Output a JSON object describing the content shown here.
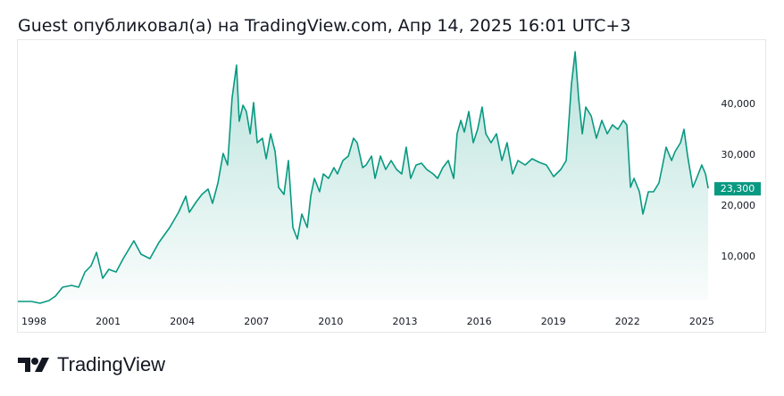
{
  "header": {
    "title": "Guest опубликовал(а) на TradingView.com, Апр 14, 2025 16:01 UTC+3"
  },
  "footer": {
    "brand": "TradingView"
  },
  "colors": {
    "line": "#089981",
    "fill": "#089981",
    "label_bg": "#089981",
    "axis_text": "#131722"
  },
  "chart_data": {
    "type": "area",
    "title": "",
    "xlabel": "",
    "ylabel": "",
    "x_ticks": [
      "1998",
      "2001",
      "2004",
      "2007",
      "2010",
      "2013",
      "2016",
      "2019",
      "2022",
      "2025"
    ],
    "x_tick_values": [
      1998,
      2001,
      2004,
      2007,
      2010,
      2013,
      2016,
      2019,
      2022,
      2025
    ],
    "y_ticks": [
      "10,000",
      "20,000",
      "30,000",
      "40,000"
    ],
    "y_tick_values": [
      10000,
      20000,
      30000,
      40000
    ],
    "xlim": [
      1997.35,
      2025.3
    ],
    "ylim": [
      0,
      53000
    ],
    "last_value_label": "23,300",
    "last_value": 23300,
    "grid": false,
    "series": [
      {
        "name": "price",
        "points": [
          [
            1997.35,
            1050
          ],
          [
            1997.89,
            1050
          ],
          [
            1998.25,
            700
          ],
          [
            1998.61,
            1230
          ],
          [
            1998.87,
            2100
          ],
          [
            1999.16,
            3860
          ],
          [
            1999.52,
            4210
          ],
          [
            1999.81,
            3860
          ],
          [
            2000.06,
            6840
          ],
          [
            2000.31,
            8070
          ],
          [
            2000.53,
            10700
          ],
          [
            2000.78,
            5610
          ],
          [
            2001.03,
            7370
          ],
          [
            2001.32,
            6840
          ],
          [
            2001.61,
            9470
          ],
          [
            2002.04,
            12980
          ],
          [
            2002.33,
            10350
          ],
          [
            2002.69,
            9470
          ],
          [
            2003.05,
            12630
          ],
          [
            2003.49,
            15610
          ],
          [
            2003.85,
            18600
          ],
          [
            2004.14,
            21750
          ],
          [
            2004.28,
            18600
          ],
          [
            2004.57,
            20700
          ],
          [
            2004.79,
            22100
          ],
          [
            2005.04,
            23160
          ],
          [
            2005.22,
            20350
          ],
          [
            2005.44,
            24390
          ],
          [
            2005.65,
            30180
          ],
          [
            2005.83,
            27900
          ],
          [
            2006.01,
            41050
          ],
          [
            2006.19,
            47540
          ],
          [
            2006.3,
            36490
          ],
          [
            2006.45,
            39650
          ],
          [
            2006.59,
            38420
          ],
          [
            2006.74,
            34040
          ],
          [
            2006.88,
            40180
          ],
          [
            2007.03,
            32280
          ],
          [
            2007.24,
            33160
          ],
          [
            2007.39,
            29120
          ],
          [
            2007.57,
            34040
          ],
          [
            2007.75,
            30530
          ],
          [
            2007.89,
            23510
          ],
          [
            2008.11,
            22110
          ],
          [
            2008.29,
            28770
          ],
          [
            2008.47,
            15610
          ],
          [
            2008.65,
            13330
          ],
          [
            2008.83,
            18250
          ],
          [
            2009.05,
            15610
          ],
          [
            2009.19,
            21750
          ],
          [
            2009.34,
            25260
          ],
          [
            2009.55,
            22630
          ],
          [
            2009.7,
            26140
          ],
          [
            2009.91,
            25260
          ],
          [
            2010.13,
            27370
          ],
          [
            2010.27,
            26140
          ],
          [
            2010.49,
            28770
          ],
          [
            2010.71,
            29650
          ],
          [
            2010.92,
            33160
          ],
          [
            2011.07,
            32280
          ],
          [
            2011.29,
            27370
          ],
          [
            2011.43,
            27890
          ],
          [
            2011.65,
            29650
          ],
          [
            2011.79,
            25260
          ],
          [
            2012.01,
            29650
          ],
          [
            2012.22,
            27020
          ],
          [
            2012.44,
            28770
          ],
          [
            2012.66,
            27020
          ],
          [
            2012.87,
            26140
          ],
          [
            2013.05,
            31400
          ],
          [
            2013.23,
            25260
          ],
          [
            2013.45,
            27890
          ],
          [
            2013.67,
            28250
          ],
          [
            2013.88,
            27020
          ],
          [
            2014.14,
            26140
          ],
          [
            2014.32,
            25260
          ],
          [
            2014.53,
            27370
          ],
          [
            2014.75,
            28770
          ],
          [
            2014.97,
            25260
          ],
          [
            2015.11,
            34040
          ],
          [
            2015.26,
            36670
          ],
          [
            2015.4,
            34390
          ],
          [
            2015.58,
            38420
          ],
          [
            2015.76,
            32280
          ],
          [
            2015.94,
            34910
          ],
          [
            2016.12,
            39300
          ],
          [
            2016.27,
            34040
          ],
          [
            2016.48,
            32280
          ],
          [
            2016.7,
            34040
          ],
          [
            2016.92,
            28770
          ],
          [
            2017.13,
            32280
          ],
          [
            2017.35,
            26140
          ],
          [
            2017.57,
            28770
          ],
          [
            2017.86,
            27890
          ],
          [
            2018.14,
            29120
          ],
          [
            2018.43,
            28420
          ],
          [
            2018.72,
            27890
          ],
          [
            2019.01,
            25610
          ],
          [
            2019.3,
            27020
          ],
          [
            2019.52,
            28770
          ],
          [
            2019.73,
            43680
          ],
          [
            2019.88,
            50180
          ],
          [
            2020.02,
            41050
          ],
          [
            2020.17,
            34040
          ],
          [
            2020.31,
            39300
          ],
          [
            2020.53,
            37540
          ],
          [
            2020.74,
            33160
          ],
          [
            2020.96,
            36670
          ],
          [
            2021.18,
            34040
          ],
          [
            2021.39,
            35790
          ],
          [
            2021.61,
            34910
          ],
          [
            2021.83,
            36670
          ],
          [
            2021.97,
            35790
          ],
          [
            2022.12,
            23510
          ],
          [
            2022.26,
            25260
          ],
          [
            2022.48,
            22630
          ],
          [
            2022.62,
            18250
          ],
          [
            2022.84,
            22630
          ],
          [
            2023.05,
            22630
          ],
          [
            2023.27,
            24390
          ],
          [
            2023.42,
            27890
          ],
          [
            2023.56,
            31400
          ],
          [
            2023.78,
            28770
          ],
          [
            2023.92,
            30530
          ],
          [
            2024.14,
            32280
          ],
          [
            2024.28,
            34910
          ],
          [
            2024.43,
            29650
          ],
          [
            2024.64,
            23510
          ],
          [
            2024.79,
            25260
          ],
          [
            2025.0,
            27890
          ],
          [
            2025.15,
            26140
          ],
          [
            2025.26,
            23300
          ]
        ]
      }
    ]
  }
}
